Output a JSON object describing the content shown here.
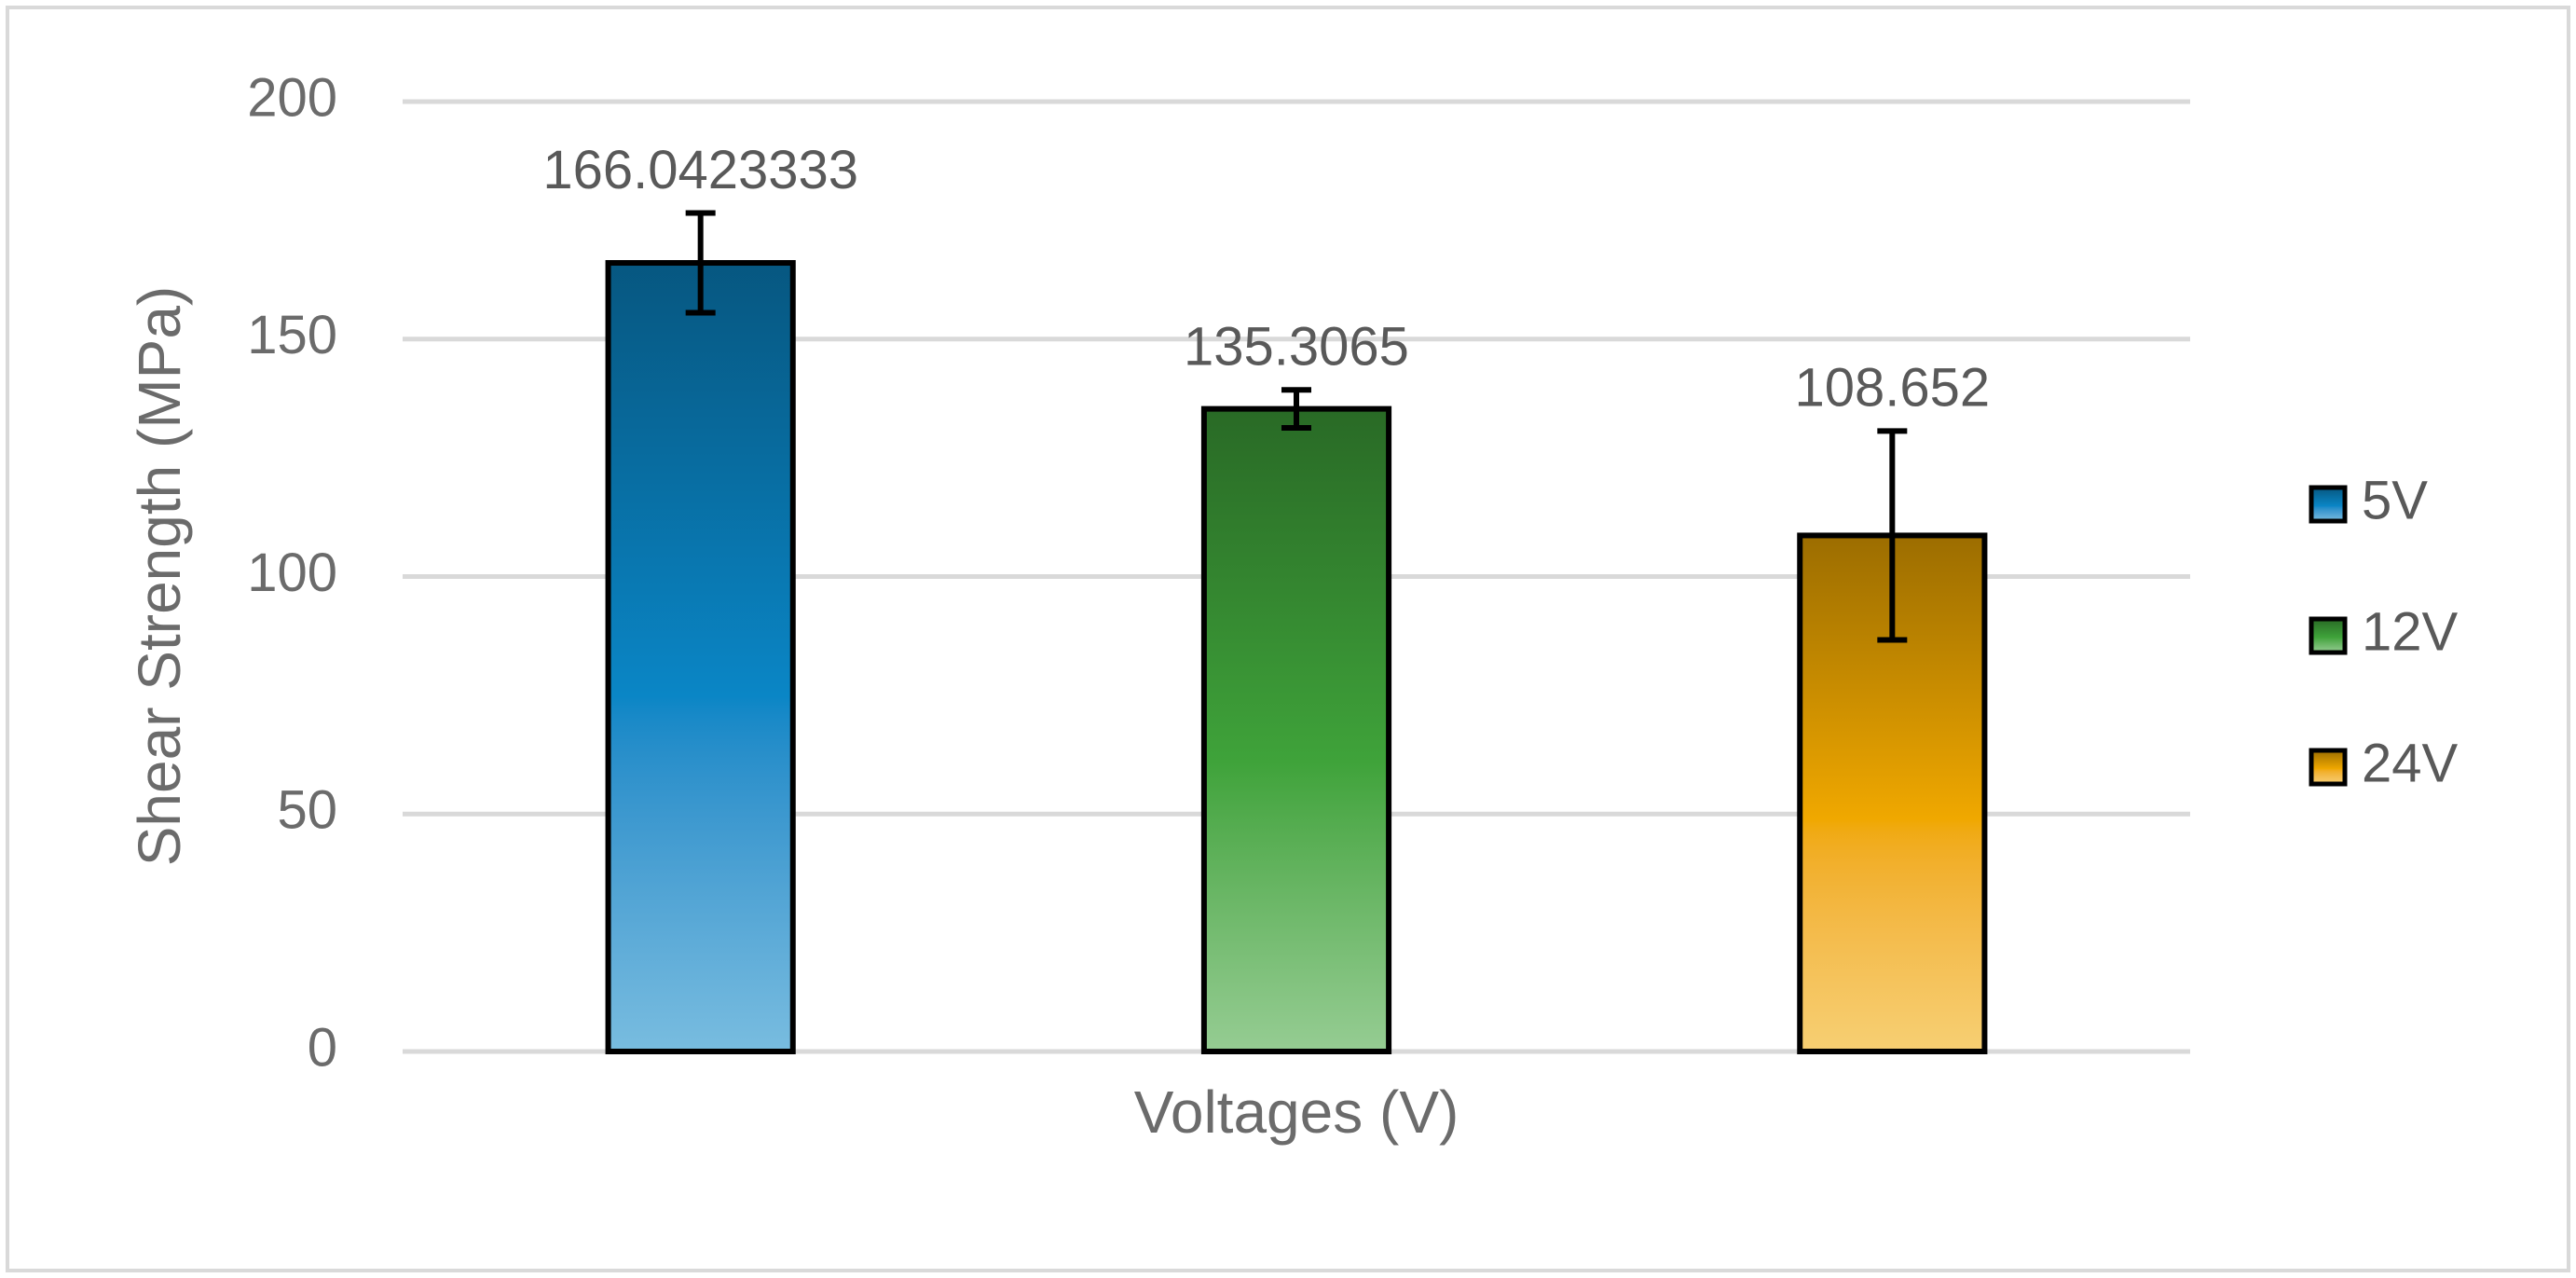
{
  "chart_data": {
    "type": "bar",
    "x_label": "Voltages (V)",
    "y_label": "Shear Strength (MPa)",
    "categories": [
      null
    ],
    "series": [
      {
        "name": "5V",
        "color": "#0a86c6",
        "values": [
          166.0423333
        ],
        "errors": [
          10.5
        ]
      },
      {
        "name": "12V",
        "color": "#3fa33a",
        "values": [
          135.3065
        ],
        "errors": [
          4
        ]
      },
      {
        "name": "24V",
        "color": "#f0a800",
        "values": [
          108.652
        ],
        "errors": [
          22
        ]
      }
    ],
    "ylim": [
      0,
      200
    ],
    "yticks": [
      0,
      50,
      100,
      150,
      200
    ],
    "grid": true,
    "legend": "right"
  }
}
